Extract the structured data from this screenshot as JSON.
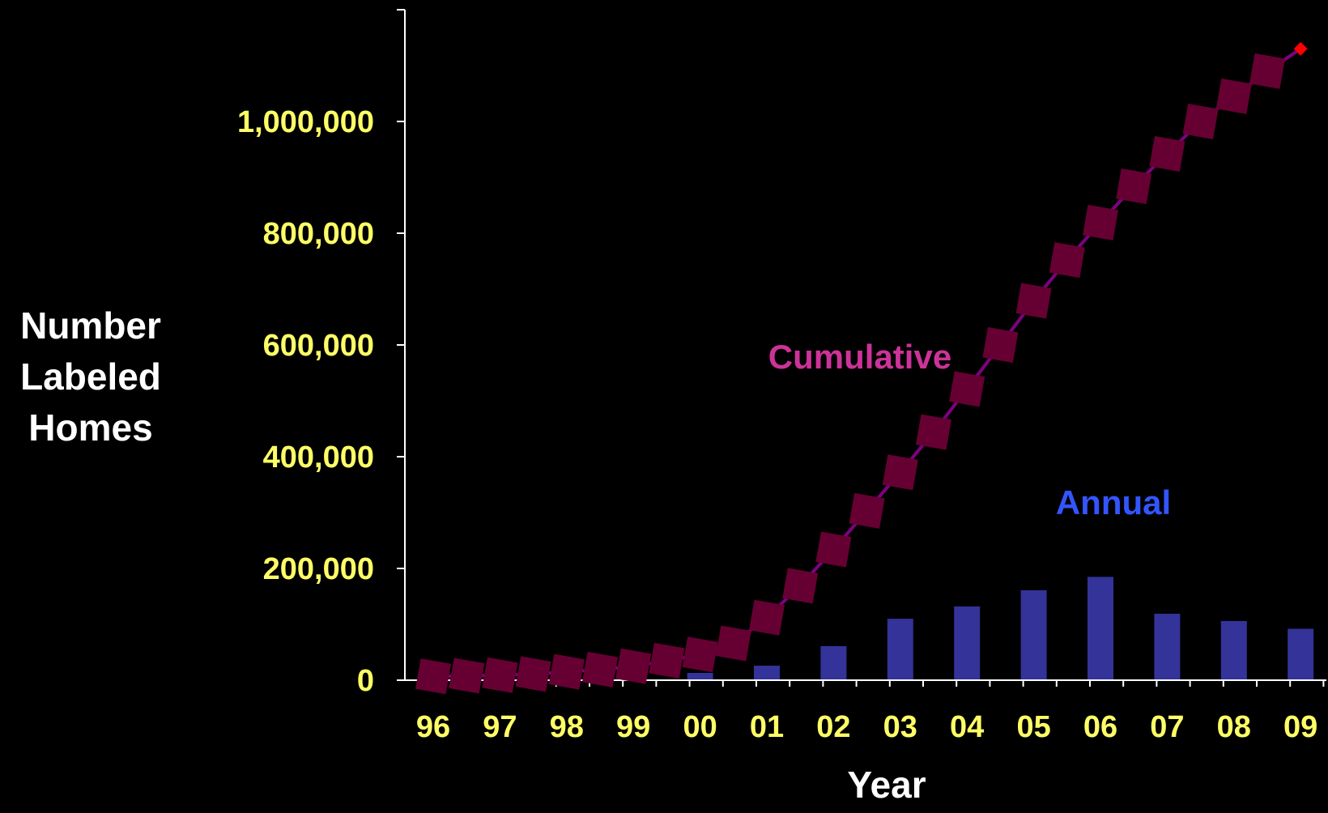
{
  "chart_data": {
    "type": "bar+line",
    "title": "",
    "xlabel": "Year",
    "ylabel": [
      "Number",
      "Labeled",
      "Homes"
    ],
    "ylim": [
      0,
      1200000
    ],
    "yticks": [
      0,
      200000,
      400000,
      600000,
      800000,
      1000000
    ],
    "ytick_labels": [
      "0",
      "200,000",
      "400,000",
      "600,000",
      "800,000",
      "1,000,000"
    ],
    "categories": [
      "96",
      "97",
      "98",
      "99",
      "00",
      "01",
      "02",
      "03",
      "04",
      "05",
      "06",
      "07",
      "08",
      "09"
    ],
    "grid": false,
    "colors": {
      "background": "#000000",
      "axis": "#ffffff",
      "tick_labels": "#ffff66",
      "annual": "#333399",
      "annual_label": "#3355ff",
      "cumulative_line": "#800080",
      "cumulative_marker": "#660033",
      "cumulative_label": "#cc3399",
      "cumulative_dot": "#ff0000"
    },
    "series": [
      {
        "name": "Annual",
        "type": "bar",
        "x": [
          1999,
          2000,
          2001,
          2002,
          2003,
          2004,
          2005,
          2006,
          2007,
          2008,
          2009
        ],
        "values": [
          6000,
          13000,
          26000,
          61000,
          110000,
          132000,
          161000,
          185000,
          119000,
          106000,
          92000
        ]
      },
      {
        "name": "Cumulative",
        "type": "line",
        "x": [
          1996.0,
          1996.5,
          1997.0,
          1997.5,
          1998.0,
          1998.5,
          1999.0,
          1999.5,
          2000.0,
          2000.5,
          2001.0,
          2001.5,
          2002.0,
          2002.5,
          2003.0,
          2003.5,
          2004.0,
          2004.5,
          2005.0,
          2005.5,
          2006.0,
          2006.5,
          2007.0,
          2007.5,
          2008.0,
          2008.5,
          2009.0
        ],
        "values": [
          7000,
          8000,
          9000,
          11000,
          15000,
          19000,
          25000,
          35000,
          46000,
          66000,
          112000,
          169000,
          234000,
          303000,
          372000,
          444000,
          521000,
          600000,
          679000,
          752000,
          819000,
          884000,
          942000,
          1000000,
          1045000,
          1090000,
          1130000
        ]
      }
    ]
  }
}
